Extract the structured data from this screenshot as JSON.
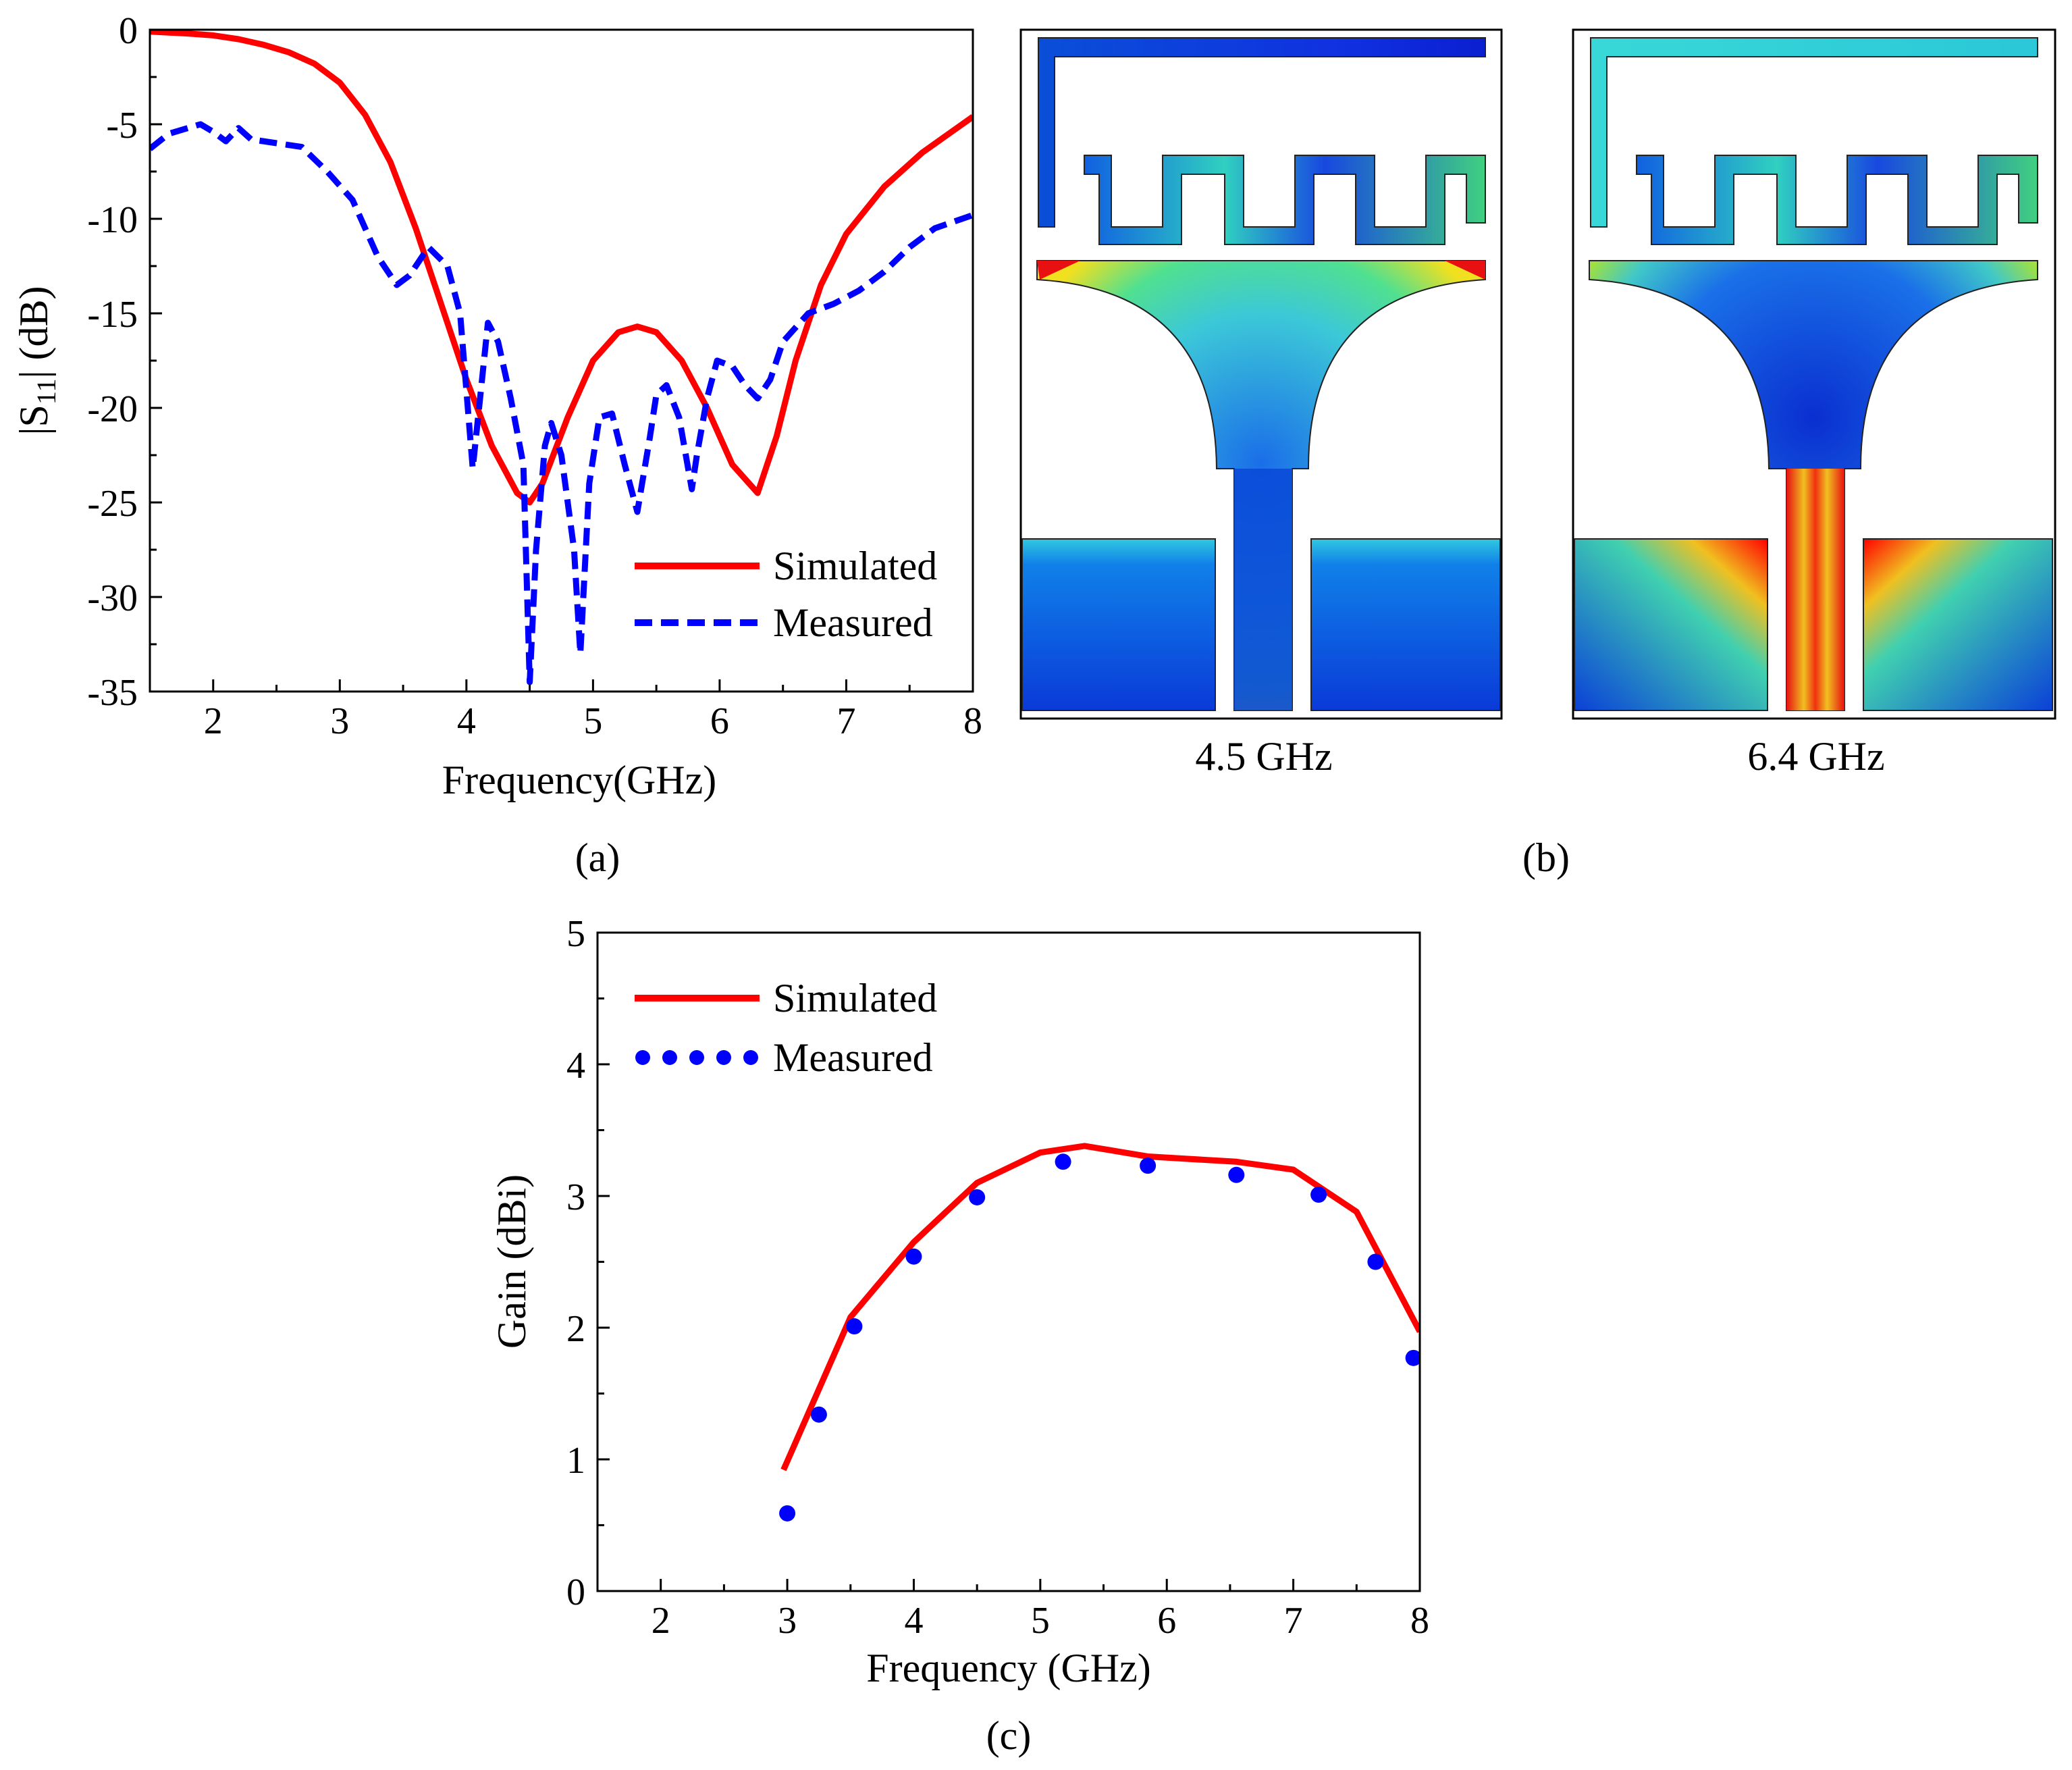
{
  "figure": {
    "panel_a_label": "(a)",
    "panel_b_label": "(b)",
    "panel_c_label": "(c)",
    "field_left_label": "4.5 GHz",
    "field_right_label": "6.4 GHz",
    "colors": {
      "simulated": "#ff0000",
      "measured": "#0000ff",
      "axes": "#000000"
    }
  },
  "chart_data": [
    {
      "id": "s11",
      "type": "line",
      "title": "",
      "xlabel": "Frequency(GHz)",
      "ylabel_main": "|S",
      "ylabel_sub": "11",
      "ylabel_tail": "| (dB)",
      "xlim": [
        1.5,
        8
      ],
      "ylim": [
        -35,
        0
      ],
      "xticks": [
        2,
        3,
        4,
        5,
        6,
        7,
        8
      ],
      "yticks": [
        0,
        -5,
        -10,
        -15,
        -20,
        -25,
        -30,
        -35
      ],
      "xtick_labels": [
        "2",
        "3",
        "4",
        "5",
        "6",
        "7",
        "8"
      ],
      "ytick_labels": [
        "0",
        "-5",
        "-10",
        "-15",
        "-20",
        "-25",
        "-30",
        "-35"
      ],
      "legend": [
        "Simulated",
        "Measured"
      ],
      "legend_position": "bottom-right",
      "series": [
        {
          "name": "Simulated",
          "style": "solid",
          "color": "#ff0000",
          "x": [
            1.5,
            1.8,
            2.0,
            2.2,
            2.4,
            2.6,
            2.8,
            3.0,
            3.2,
            3.4,
            3.6,
            3.8,
            4.0,
            4.2,
            4.4,
            4.5,
            4.6,
            4.8,
            5.0,
            5.2,
            5.35,
            5.5,
            5.7,
            5.9,
            6.1,
            6.3,
            6.45,
            6.6,
            6.8,
            7.0,
            7.3,
            7.6,
            8.0
          ],
          "y": [
            -0.1,
            -0.2,
            -0.3,
            -0.5,
            -0.8,
            -1.2,
            -1.8,
            -2.8,
            -4.5,
            -7.0,
            -10.5,
            -14.5,
            -18.5,
            -22.0,
            -24.5,
            -25.0,
            -24.0,
            -20.5,
            -17.5,
            -16.0,
            -15.7,
            -16.0,
            -17.5,
            -20.0,
            -23.0,
            -24.5,
            -21.5,
            -17.5,
            -13.5,
            -10.8,
            -8.3,
            -6.5,
            -4.6
          ]
        },
        {
          "name": "Measured",
          "style": "dashed",
          "color": "#0000ff",
          "x": [
            1.5,
            1.65,
            1.8,
            1.9,
            2.0,
            2.1,
            2.2,
            2.3,
            2.5,
            2.7,
            2.9,
            3.1,
            3.3,
            3.45,
            3.55,
            3.7,
            3.85,
            3.95,
            4.05,
            4.1,
            4.17,
            4.25,
            4.35,
            4.45,
            4.5,
            4.55,
            4.62,
            4.67,
            4.75,
            4.85,
            4.9,
            4.97,
            5.05,
            5.15,
            5.25,
            5.35,
            5.45,
            5.5,
            5.58,
            5.68,
            5.78,
            5.82,
            5.9,
            5.98,
            6.1,
            6.2,
            6.3,
            6.4,
            6.5,
            6.7,
            6.9,
            7.1,
            7.3,
            7.5,
            7.7,
            8.0
          ],
          "y": [
            -6.3,
            -5.5,
            -5.2,
            -5.0,
            -5.4,
            -5.9,
            -5.2,
            -5.8,
            -6.0,
            -6.2,
            -7.5,
            -9.0,
            -12.0,
            -13.5,
            -13.0,
            -11.5,
            -12.5,
            -15.0,
            -23.2,
            -20.0,
            -15.5,
            -16.5,
            -19.5,
            -23.0,
            -34.5,
            -27.5,
            -22.0,
            -20.8,
            -22.5,
            -27.5,
            -33.0,
            -24.0,
            -20.5,
            -20.3,
            -23.0,
            -25.5,
            -21.5,
            -19.3,
            -18.8,
            -20.5,
            -24.3,
            -22.5,
            -19.5,
            -17.5,
            -17.8,
            -18.8,
            -19.5,
            -18.5,
            -16.5,
            -15.0,
            -14.5,
            -13.8,
            -12.8,
            -11.5,
            -10.5,
            -9.8
          ]
        }
      ]
    },
    {
      "id": "gain",
      "type": "line",
      "title": "",
      "xlabel": "Frequency (GHz)",
      "ylabel": "Gain (dBi)",
      "xlim": [
        1.5,
        8
      ],
      "ylim": [
        0,
        5
      ],
      "xticks": [
        2,
        3,
        4,
        5,
        6,
        7,
        8
      ],
      "yticks": [
        0,
        1,
        2,
        3,
        4,
        5
      ],
      "xtick_labels": [
        "2",
        "3",
        "4",
        "5",
        "6",
        "7",
        "8"
      ],
      "ytick_labels": [
        "0",
        "1",
        "2",
        "3",
        "4",
        "5"
      ],
      "legend": [
        "Simulated",
        "Measured"
      ],
      "legend_position": "top-left",
      "series": [
        {
          "name": "Simulated",
          "style": "solid",
          "color": "#ff0000",
          "x": [
            2.97,
            3.5,
            4.0,
            4.5,
            5.0,
            5.35,
            5.85,
            6.55,
            7.0,
            7.5,
            8.0
          ],
          "y": [
            0.92,
            2.08,
            2.65,
            3.1,
            3.33,
            3.38,
            3.3,
            3.26,
            3.2,
            2.88,
            1.97
          ]
        },
        {
          "name": "Measured",
          "style": "markers",
          "color": "#0000ff",
          "x": [
            3.0,
            3.25,
            3.53,
            4.0,
            4.5,
            5.18,
            5.85,
            6.55,
            7.2,
            7.65,
            7.95
          ],
          "y": [
            0.59,
            1.34,
            2.01,
            2.54,
            2.99,
            3.26,
            3.23,
            3.16,
            3.01,
            2.5,
            1.77
          ]
        }
      ]
    }
  ]
}
